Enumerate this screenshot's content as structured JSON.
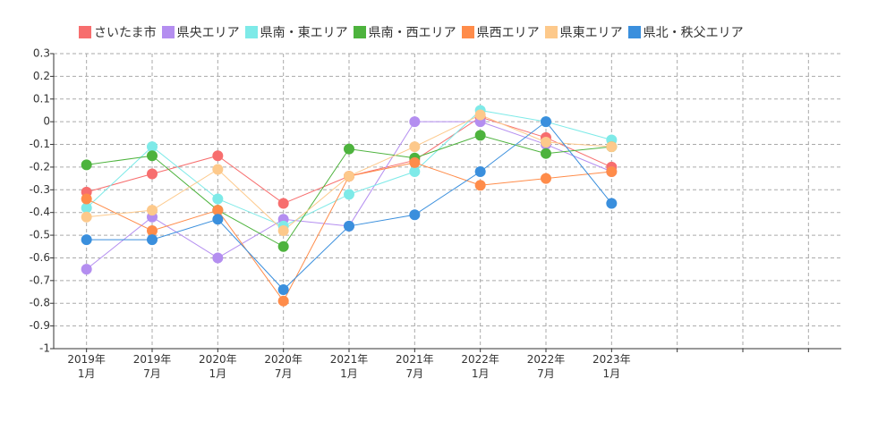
{
  "chart_data": {
    "type": "line",
    "categories": [
      "2019年\n1月",
      "2019年\n7月",
      "2020年\n1月",
      "2020年\n7月",
      "2021年\n1月",
      "2021年\n7月",
      "2022年\n1月",
      "2022年\n7月",
      "2023年\n1月",
      null,
      null,
      null
    ],
    "series": [
      {
        "name": "さいたま市",
        "color": "#f76e6e",
        "values": [
          -0.31,
          -0.23,
          -0.15,
          -0.36,
          -0.24,
          -0.17,
          0.02,
          -0.07,
          -0.2,
          null,
          null,
          null
        ]
      },
      {
        "name": "県央エリア",
        "color": "#b48ef0",
        "values": [
          -0.65,
          -0.42,
          -0.6,
          -0.43,
          -0.46,
          0,
          0,
          -0.1,
          -0.22,
          null,
          null,
          null
        ]
      },
      {
        "name": "県南・東エリア",
        "color": "#7eeae8",
        "values": [
          -0.38,
          -0.11,
          -0.34,
          -0.46,
          -0.32,
          -0.22,
          0.05,
          0,
          -0.08,
          null,
          null,
          null
        ]
      },
      {
        "name": "県南・西エリア",
        "color": "#4db33d",
        "values": [
          -0.19,
          -0.15,
          -0.39,
          -0.55,
          -0.12,
          -0.16,
          -0.06,
          -0.14,
          -0.11,
          null,
          null,
          null
        ]
      },
      {
        "name": "県西エリア",
        "color": "#ff8c4a",
        "values": [
          -0.34,
          -0.48,
          -0.39,
          -0.79,
          -0.24,
          -0.18,
          -0.28,
          -0.25,
          -0.22,
          null,
          null,
          null
        ]
      },
      {
        "name": "県東エリア",
        "color": "#fdc98b",
        "values": [
          -0.42,
          -0.39,
          -0.21,
          -0.48,
          -0.24,
          -0.11,
          0.03,
          -0.09,
          -0.11,
          null,
          null,
          null
        ]
      },
      {
        "name": "県北・秩父エリア",
        "color": "#3a8fdd",
        "values": [
          -0.52,
          -0.52,
          -0.43,
          -0.74,
          -0.46,
          -0.41,
          -0.22,
          0,
          -0.36,
          null,
          null,
          null
        ]
      }
    ],
    "ylim": [
      -1,
      0.3
    ],
    "yticks": [
      0.3,
      0.2,
      0.1,
      0,
      -0.1,
      -0.2,
      -0.3,
      -0.4,
      -0.5,
      -0.6,
      -0.7,
      -0.8,
      -0.9,
      -1
    ],
    "grid": true
  }
}
